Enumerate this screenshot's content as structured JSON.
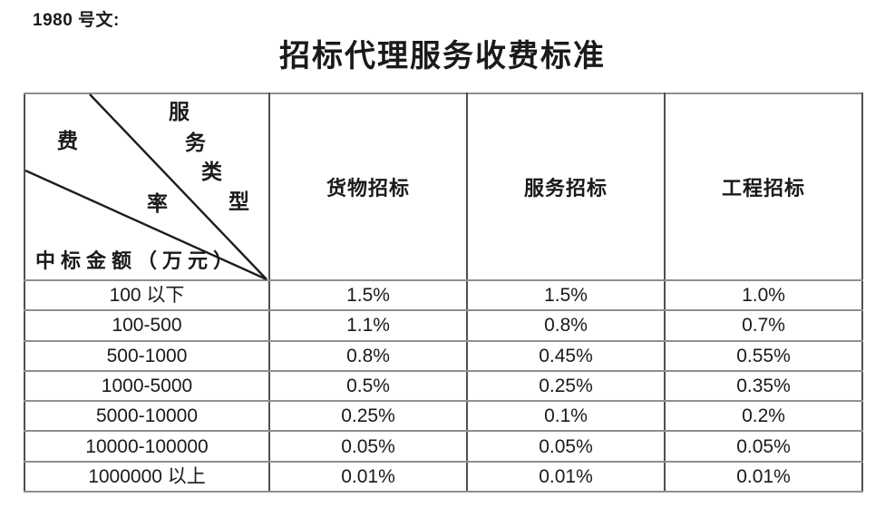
{
  "doc": {
    "ref_label": "1980 号文:",
    "title": "招标代理服务收费标准"
  },
  "table": {
    "corner": {
      "service_type_chars": [
        "服",
        "务",
        "类",
        "型"
      ],
      "rate_chars": [
        "费",
        "率"
      ],
      "amount_label": "中标金额（万元）"
    },
    "columns": [
      "货物招标",
      "服务招标",
      "工程招标"
    ],
    "rows": [
      {
        "amount_range": "100 以下",
        "values": [
          "1.5%",
          "1.5%",
          "1.0%"
        ]
      },
      {
        "amount_range": "100-500",
        "values": [
          "1.1%",
          "0.8%",
          "0.7%"
        ]
      },
      {
        "amount_range": "500-1000",
        "values": [
          "0.8%",
          "0.45%",
          "0.55%"
        ]
      },
      {
        "amount_range": "1000-5000",
        "values": [
          "0.5%",
          "0.25%",
          "0.35%"
        ]
      },
      {
        "amount_range": "5000-10000",
        "values": [
          "0.25%",
          "0.1%",
          "0.2%"
        ]
      },
      {
        "amount_range": "10000-100000",
        "values": [
          "0.05%",
          "0.05%",
          "0.05%"
        ]
      },
      {
        "amount_range": "1000000 以上",
        "values": [
          "0.01%",
          "0.01%",
          "0.01%"
        ]
      }
    ]
  },
  "colors": {
    "text": "#1a1a1a",
    "border_outer": "#7c7c7c",
    "border_vertical": "#4f4f4f",
    "border_horizontal": "#8f8f8f",
    "diagonal_line": "#1d1d1d"
  }
}
